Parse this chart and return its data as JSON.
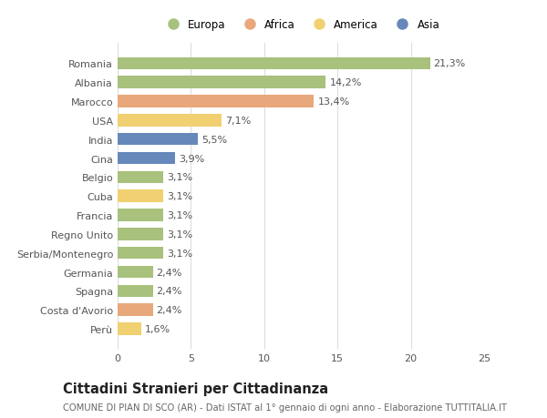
{
  "countries": [
    "Romania",
    "Albania",
    "Marocco",
    "USA",
    "India",
    "Cina",
    "Belgio",
    "Cuba",
    "Francia",
    "Regno Unito",
    "Serbia/Montenegro",
    "Germania",
    "Spagna",
    "Costa d'Avorio",
    "Perù"
  ],
  "values": [
    21.3,
    14.2,
    13.4,
    7.1,
    5.5,
    3.9,
    3.1,
    3.1,
    3.1,
    3.1,
    3.1,
    2.4,
    2.4,
    2.4,
    1.6
  ],
  "labels": [
    "21,3%",
    "14,2%",
    "13,4%",
    "7,1%",
    "5,5%",
    "3,9%",
    "3,1%",
    "3,1%",
    "3,1%",
    "3,1%",
    "3,1%",
    "2,4%",
    "2,4%",
    "2,4%",
    "1,6%"
  ],
  "continents": [
    "Europa",
    "Europa",
    "Africa",
    "America",
    "Asia",
    "Asia",
    "Europa",
    "America",
    "Europa",
    "Europa",
    "Europa",
    "Europa",
    "Europa",
    "Africa",
    "America"
  ],
  "colors": {
    "Europa": "#a8c17c",
    "Africa": "#e8a87c",
    "America": "#f0d070",
    "Asia": "#6688bb"
  },
  "xlim": [
    0,
    25
  ],
  "xticks": [
    0,
    5,
    10,
    15,
    20,
    25
  ],
  "title": "Cittadini Stranieri per Cittadinanza",
  "subtitle": "COMUNE DI PIAN DI SCO (AR) - Dati ISTAT al 1° gennaio di ogni anno - Elaborazione TUTTITALIA.IT",
  "bg_color": "#ffffff",
  "grid_color": "#dddddd",
  "bar_height": 0.65,
  "label_fontsize": 8.0,
  "tick_fontsize": 8.0,
  "title_fontsize": 10.5,
  "subtitle_fontsize": 7.2,
  "legend_fontsize": 8.5
}
